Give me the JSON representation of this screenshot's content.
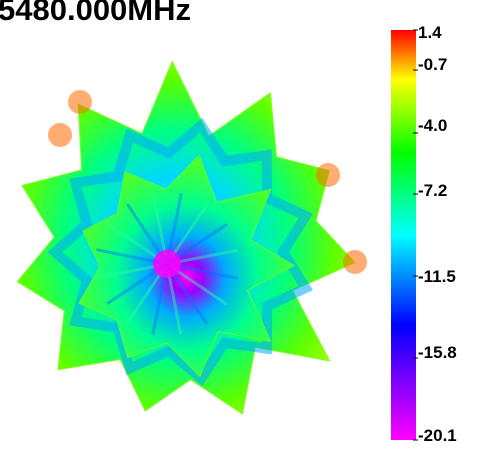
{
  "chart_data": {
    "type": "heatmap",
    "subtype": "3d-radiation-pattern",
    "title": "5480.000MHz",
    "colorbar": {
      "min": -20.1,
      "max": 1.4,
      "ticks": [
        1.4,
        -0.7,
        -4.0,
        -7.2,
        -11.5,
        -15.8,
        -20.1
      ],
      "tick_labels": [
        "1.4",
        "-0.7",
        "-4.0",
        "-7.2",
        "-11.5",
        "-15.8",
        "-20.1"
      ],
      "colormap": [
        "#ff0000",
        "#ffff00",
        "#00ff00",
        "#00ffff",
        "#0000ff",
        "#ff00ff"
      ],
      "placement": "right"
    },
    "grid": false,
    "legend": "none"
  }
}
